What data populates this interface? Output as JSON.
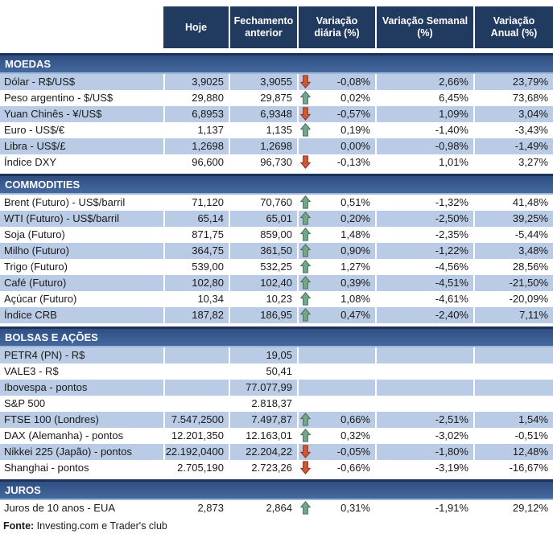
{
  "table": {
    "columns": [
      "Hoje",
      "Fechamento anterior",
      "Variação diária (%)",
      "Variação Semanal (%)",
      "Variação Anual (%)"
    ]
  },
  "sections": [
    {
      "title": "MOEDAS",
      "zebra_start": "blue",
      "rows": [
        {
          "label": "Dólar - R$/US$",
          "hoje": "3,9025",
          "fechamento": "3,9055",
          "arrow": "down",
          "var_diaria": "-0,08%",
          "var_semanal": "2,66%",
          "var_anual": "23,79%"
        },
        {
          "label": "Peso argentino - $/US$",
          "hoje": "29,880",
          "fechamento": "29,875",
          "arrow": "up",
          "var_diaria": "0,02%",
          "var_semanal": "6,45%",
          "var_anual": "73,68%"
        },
        {
          "label": "Yuan Chinês - ¥/US$",
          "hoje": "6,8953",
          "fechamento": "6,9348",
          "arrow": "down",
          "var_diaria": "-0,57%",
          "var_semanal": "1,09%",
          "var_anual": "3,04%"
        },
        {
          "label": "Euro - US$/€",
          "hoje": "1,137",
          "fechamento": "1,135",
          "arrow": "up",
          "var_diaria": "0,19%",
          "var_semanal": "-1,40%",
          "var_anual": "-3,43%"
        },
        {
          "label": "Libra - US$/£",
          "hoje": "1,2698",
          "fechamento": "1,2698",
          "arrow": "none",
          "var_diaria": "0,00%",
          "var_semanal": "-0,98%",
          "var_anual": "-1,49%"
        },
        {
          "label": "Índice DXY",
          "hoje": "96,600",
          "fechamento": "96,730",
          "arrow": "down",
          "var_diaria": "-0,13%",
          "var_semanal": "1,01%",
          "var_anual": "3,27%"
        }
      ]
    },
    {
      "title": "COMMODITIES",
      "zebra_start": "white",
      "rows": [
        {
          "label": "Brent (Futuro) - US$/barril",
          "hoje": "71,120",
          "fechamento": "70,760",
          "arrow": "up",
          "var_diaria": "0,51%",
          "var_semanal": "-1,32%",
          "var_anual": "41,48%"
        },
        {
          "label": "WTI (Futuro) - US$/barril",
          "hoje": "65,14",
          "fechamento": "65,01",
          "arrow": "up",
          "var_diaria": "0,20%",
          "var_semanal": "-2,50%",
          "var_anual": "39,25%"
        },
        {
          "label": "Soja (Futuro)",
          "hoje": "871,75",
          "fechamento": "859,00",
          "arrow": "up",
          "var_diaria": "1,48%",
          "var_semanal": "-2,35%",
          "var_anual": "-5,44%"
        },
        {
          "label": "Milho (Futuro)",
          "hoje": "364,75",
          "fechamento": "361,50",
          "arrow": "up",
          "var_diaria": "0,90%",
          "var_semanal": "-1,22%",
          "var_anual": "3,48%"
        },
        {
          "label": "Trigo (Futuro)",
          "hoje": "539,00",
          "fechamento": "532,25",
          "arrow": "up",
          "var_diaria": "1,27%",
          "var_semanal": "-4,56%",
          "var_anual": "28,56%"
        },
        {
          "label": "Café (Futuro)",
          "hoje": "102,80",
          "fechamento": "102,40",
          "arrow": "up",
          "var_diaria": "0,39%",
          "var_semanal": "-4,51%",
          "var_anual": "-21,50%"
        },
        {
          "label": "Açúcar (Futuro)",
          "hoje": "10,34",
          "fechamento": "10,23",
          "arrow": "up",
          "var_diaria": "1,08%",
          "var_semanal": "-4,61%",
          "var_anual": "-20,09%"
        },
        {
          "label": "Índice CRB",
          "hoje": "187,82",
          "fechamento": "186,95",
          "arrow": "up",
          "var_diaria": "0,47%",
          "var_semanal": "-2,40%",
          "var_anual": "7,11%"
        }
      ]
    },
    {
      "title": "BOLSAS E AÇÕES",
      "zebra_start": "blue",
      "rows": [
        {
          "label": "PETR4 (PN) - R$",
          "hoje": "",
          "fechamento": "19,05",
          "arrow": "none",
          "var_diaria": "",
          "var_semanal": "",
          "var_anual": ""
        },
        {
          "label": "VALE3 - R$",
          "hoje": "",
          "fechamento": "50,41",
          "arrow": "none",
          "var_diaria": "",
          "var_semanal": "",
          "var_anual": ""
        },
        {
          "label": "Ibovespa - pontos",
          "hoje": "",
          "fechamento": "77.077,99",
          "arrow": "none",
          "var_diaria": "",
          "var_semanal": "",
          "var_anual": ""
        },
        {
          "label": "S&P 500",
          "hoje": "",
          "fechamento": "2.818,37",
          "arrow": "none",
          "var_diaria": "",
          "var_semanal": "",
          "var_anual": ""
        },
        {
          "label": "FTSE 100 (Londres)",
          "hoje": "7.547,2500",
          "fechamento": "7.497,87",
          "arrow": "up",
          "var_diaria": "0,66%",
          "var_semanal": "-2,51%",
          "var_anual": "1,54%"
        },
        {
          "label": "DAX (Alemanha) - pontos",
          "hoje": "12.201,350",
          "fechamento": "12.163,01",
          "arrow": "up",
          "var_diaria": "0,32%",
          "var_semanal": "-3,02%",
          "var_anual": "-0,51%"
        },
        {
          "label": "Nikkei 225 (Japão) - pontos",
          "hoje": "22.192,0400",
          "fechamento": "22.204,22",
          "arrow": "down",
          "var_diaria": "-0,05%",
          "var_semanal": "-1,80%",
          "var_anual": "12,48%"
        },
        {
          "label": "Shanghai - pontos",
          "hoje": "2.705,190",
          "fechamento": "2.723,26",
          "arrow": "down",
          "var_diaria": "-0,66%",
          "var_semanal": "-3,19%",
          "var_anual": "-16,67%"
        }
      ]
    },
    {
      "title": "JUROS",
      "zebra_start": "white",
      "rows": [
        {
          "label": "Juros de 10 anos - EUA",
          "hoje": "2,873",
          "fechamento": "2,864",
          "arrow": "up",
          "var_diaria": "0,31%",
          "var_semanal": "-1,91%",
          "var_anual": "29,12%"
        }
      ]
    }
  ],
  "footer": {
    "source_label": "Fonte:",
    "source_text": " Investing.com e Trader's club"
  },
  "colors": {
    "header_background": "#203A60",
    "section_band": "#3B5E94",
    "row_highlight": "#BACBE6",
    "arrow_up": "#74A78C",
    "arrow_down": "#CB5B35"
  }
}
